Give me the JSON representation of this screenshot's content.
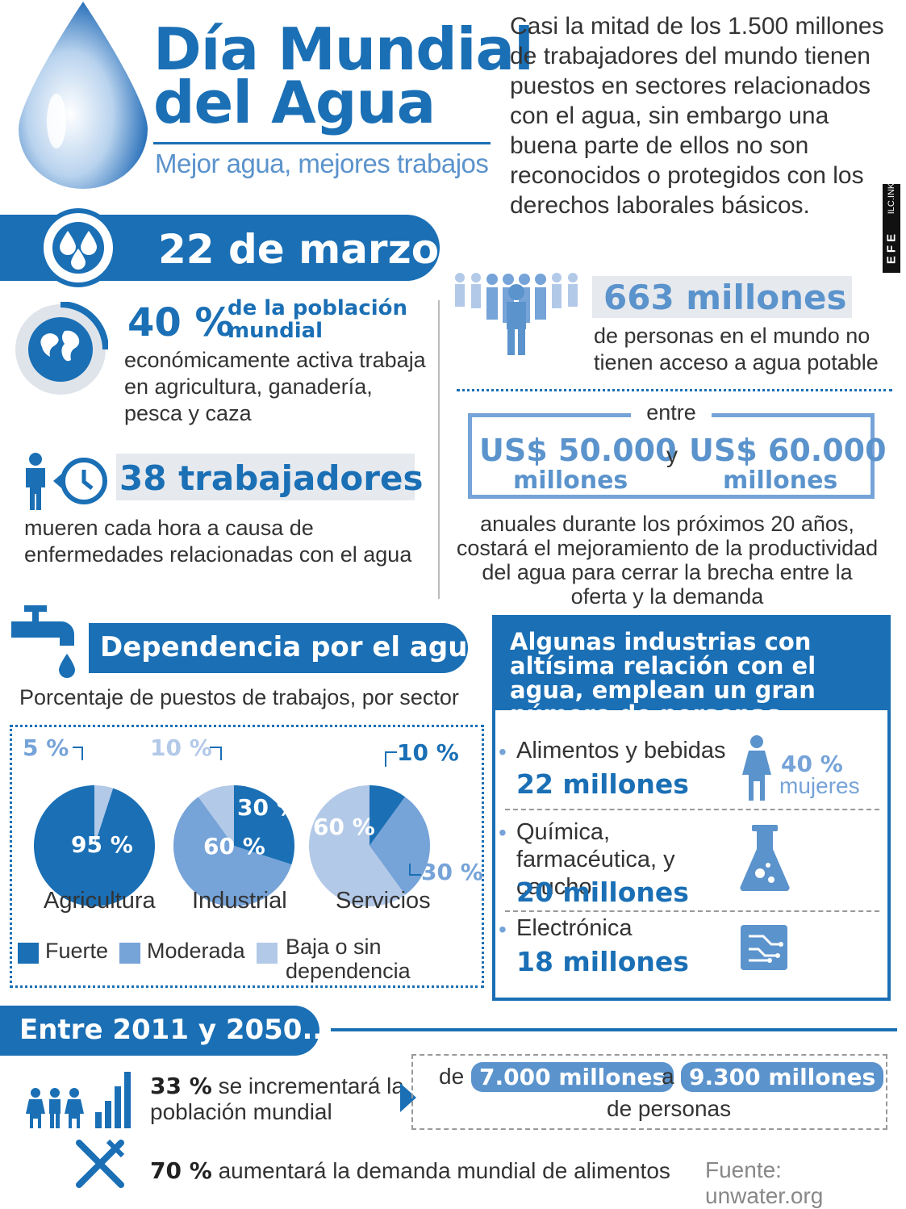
{
  "header": {
    "title_line1": "Día Mundial",
    "title_line2": "del Agua",
    "subtitle": "Mejor agua, mejores trabajos",
    "intro": "Casi la mitad de los 1.500 millones de trabajadores del mundo tienen puestos en sectores relacionados con el agua, sin embargo una buena parte de ellos no son reconocidos o protegidos con los derechos laborales básicos.",
    "credit_left": "EFE",
    "credit_right": "ILC.INK"
  },
  "date_band": {
    "label": "22 de marzo",
    "icon": "water-drops-icon"
  },
  "stat_population": {
    "value": "40 %",
    "label_line1": "de la población",
    "label_line2": "mundial",
    "text": "económicamente activa trabaja en agricultura, ganadería, pesca y caza",
    "icon": "globe-icon"
  },
  "stat_workers": {
    "value": "38 trabajadores",
    "text": "mueren cada hora a causa de enfermedades relacionadas con el agua",
    "icons": [
      "worker-icon",
      "clock-back-icon"
    ]
  },
  "stat_people": {
    "value": "663 millones",
    "text": "de personas en el mundo no tienen acceso a agua potable",
    "icon": "crowd-icon"
  },
  "stat_cost": {
    "between": "entre",
    "value1": "US$ 50.000",
    "unit1": "millones",
    "connector": "y",
    "value2": "US$ 60.000",
    "unit2": "millones",
    "text": "anuales durante los próximos 20 años, costará el mejoramiento de la productividad del agua para cerrar la brecha entre la oferta y la demanda"
  },
  "dependence": {
    "title": "Dependencia por el agua",
    "subtitle": "Porcentaje de puestos de trabajos, por sector",
    "icon": "faucet-icon",
    "legend": [
      "Fuerte",
      "Moderada",
      "Baja o sin dependencia"
    ]
  },
  "chart_data": {
    "type": "pie",
    "title": "Porcentaje de puestos de trabajos, por sector",
    "legend_labels": [
      "Fuerte",
      "Moderada",
      "Baja o sin dependencia"
    ],
    "charts": [
      {
        "name": "Agricultura",
        "slices": [
          {
            "label": "Fuerte",
            "value": 95
          },
          {
            "label": "Baja o sin dependencia",
            "value": 5
          }
        ]
      },
      {
        "name": "Industrial",
        "slices": [
          {
            "label": "Fuerte",
            "value": 30
          },
          {
            "label": "Moderada",
            "value": 60
          },
          {
            "label": "Baja o sin dependencia",
            "value": 10
          }
        ]
      },
      {
        "name": "Servicios",
        "slices": [
          {
            "label": "Fuerte",
            "value": 10
          },
          {
            "label": "Moderada",
            "value": 30
          },
          {
            "label": "Baja o sin dependencia",
            "value": 60
          }
        ]
      }
    ],
    "colors": {
      "Fuerte": "#1a6fb5",
      "Moderada": "#76a3d8",
      "Baja o sin dependencia": "#b3c9e8"
    },
    "labels": {
      "agri_95": "95 %",
      "agri_5": "5 %",
      "ind_30": "30 %",
      "ind_60": "60 %",
      "ind_10": "10 %",
      "serv_10": "10 %",
      "serv_30": "30 %",
      "serv_60": "60 %"
    }
  },
  "industries": {
    "title": "Algunas industrias con altísima relación con el agua, emplean un gran número de personas",
    "items": [
      {
        "name": "Alimentos y bebidas",
        "value": "22 millones",
        "icon": "woman-icon"
      },
      {
        "name": "Química, farmacéutica, y caucho",
        "value": "20 millones",
        "icon": "flask-icon"
      },
      {
        "name": "Electrónica",
        "value": "18 millones",
        "icon": "circuit-icon"
      }
    ],
    "women_pct": "40 %",
    "women_label": "mujeres"
  },
  "future": {
    "title": "Entre 2011 y 2050...",
    "pop_pct": "33 %",
    "pop_text": "se incrementará la población mundial",
    "from_word": "de",
    "from_value": "7.000 millones",
    "to_word": "a",
    "to_value": "9.300 millones",
    "people_word": "de personas",
    "food_pct": "70 %",
    "food_text": "aumentará la demanda mundial de alimentos",
    "icons": [
      "family-growth-icon",
      "cutlery-icon"
    ]
  },
  "source": "Fuente: unwater.org",
  "colors": {
    "primary": "#1a6fb5",
    "medium": "#76a3d8",
    "light": "#b3c9e8"
  }
}
